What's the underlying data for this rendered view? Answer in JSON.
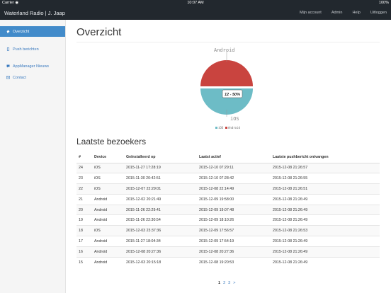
{
  "statusbar": {
    "carrier": "Carrier ◉",
    "time": "10:07 AM",
    "battery": "100%"
  },
  "navbar": {
    "brand": "Waterland Radio | J. Jaap",
    "links": [
      "Mijn account",
      "Admin",
      "Help",
      "Uitloggen"
    ]
  },
  "sidebar": {
    "items": [
      {
        "label": "Overzicht",
        "icon": "home-icon"
      },
      {
        "label": "Push berichten",
        "icon": "phone-icon"
      },
      {
        "label": "AppManager Nieuws",
        "icon": "comment-icon"
      },
      {
        "label": "Contact",
        "icon": "envelope-icon"
      }
    ]
  },
  "main": {
    "title": "Overzicht",
    "section_title": "Laatste bezoekers"
  },
  "chart_data": {
    "type": "pie",
    "categories": [
      "Android",
      "iOS"
    ],
    "values": [
      12,
      12
    ],
    "slice_labels": [
      "Android",
      "iOS"
    ],
    "tooltip": "12 - 50%",
    "legend": [
      "iOS",
      "Android"
    ],
    "legend_placement": "bottom",
    "colors": [
      "#c9443f",
      "#6dbcc6"
    ]
  },
  "table": {
    "headers": [
      "#",
      "Device",
      "Geïnstalleerd op",
      "Laatst actief",
      "Laatste pushbericht ontvangen"
    ],
    "rows": [
      [
        "24",
        "iOS",
        "2015-11-27 17:28:19",
        "2015-12-10 07:29:11",
        "2015-12-08 21:26:57"
      ],
      [
        "23",
        "iOS",
        "2015-11-30 20:42:51",
        "2015-12-10 07:28:42",
        "2015-12-08 21:26:55"
      ],
      [
        "22",
        "iOS",
        "2015-12-07 22:29:01",
        "2015-12-08 22:14:49",
        "2015-12-08 21:26:51"
      ],
      [
        "21",
        "Android",
        "2015-12-02 20:21:49",
        "2015-12-09 19:58:00",
        "2015-12-08 21:26:49"
      ],
      [
        "20",
        "Android",
        "2015-11-26 22:29:41",
        "2015-12-09 19:07:48",
        "2015-12-08 21:26:49"
      ],
      [
        "19",
        "Android",
        "2015-11-26 22:30:54",
        "2015-12-09 18:10:26",
        "2015-12-08 21:26:49"
      ],
      [
        "18",
        "iOS",
        "2015-12-03 23:37:36",
        "2015-12-09 17:56:57",
        "2015-12-08 21:26:53"
      ],
      [
        "17",
        "Android",
        "2015-11-27 18:04:34",
        "2015-12-09 17:54:19",
        "2015-12-08 21:26:49"
      ],
      [
        "16",
        "Android",
        "2015-12-08 20:27:36",
        "2015-12-08 20:27:36",
        "2015-12-08 21:26:49"
      ],
      [
        "15",
        "Android",
        "2015-12-03 20:15:18",
        "2015-12-08 19:20:53",
        "2015-12-08 21:26:49"
      ]
    ]
  },
  "pagination": {
    "pages": [
      "1",
      "2",
      "3"
    ],
    "next": ">",
    "current": "1"
  }
}
